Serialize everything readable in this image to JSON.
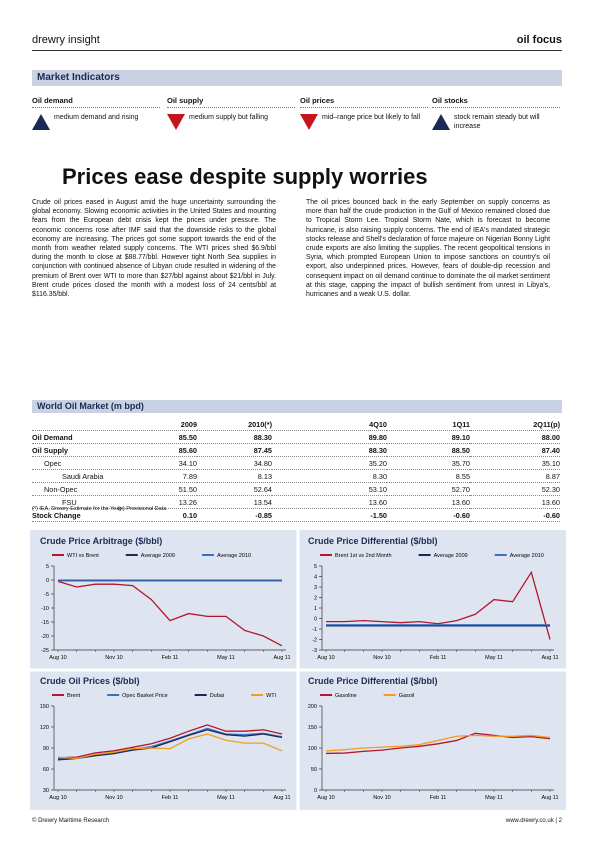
{
  "header": {
    "brand": "drewry insight",
    "section": "oil focus"
  },
  "indicators": {
    "title": "Market Indicators",
    "items": [
      {
        "label": "Oil demand",
        "text": "medium demand and rising"
      },
      {
        "label": "Oil supply",
        "text": "medium supply but falling"
      },
      {
        "label": "Oil prices",
        "text": "mid–range price but likely to fall"
      },
      {
        "label": "Oil stocks",
        "text": "stock remain steady but will increase"
      }
    ]
  },
  "article": {
    "title": "Prices ease despite supply worries",
    "columns": [
      "Crude oil prices eased in August amid the huge uncertainty surrounding the global economy. Slowing economic activities in the United States and mounting fears from the European debt crisis kept the prices under pressure. The economic concerns rose after IMF said that the downside risks to the global economy are increasing. The prices got some support towards the end of the month from weather related supply concerns. The WTI prices shed $6.9/bbl during the month to close at $88.77/bbl. However tight North Sea supplies in conjunction with continued absence of Libyan crude resulted in widening of the premium of Brent over WTI to more than $27/bbl against about $21/bbl in July.  Brent crude prices closed the month with a modest loss of 24 cents/bbl at $116.35/bbl.",
      "The oil prices bounced back in the early September on supply concerns as more than half the crude production in the Gulf of Mexico remained closed due to Tropical Storm Lee. Tropical Storm Nate, which is forecast to become hurricane, is also raising supply concerns. The end of IEA's mandated strategic stocks release and Shell's declaration of force majeure on Nigerian Bonny Light crude exports are also limiting the supplies. The recent geopolitical tensions in Syria, which prompted European Union to impose sanctions on country's oil export, also underpinned prices. However, fears of double-dip recession and consequent impact on oil demand continue to dominate the oil market sentiment at this stage, capping the impact of bullish sentiment from unrest in Libya's, hurricanes and a weak U.S. dollar."
    ]
  },
  "table": {
    "title": "World Oil Market (m bpd)",
    "columns": [
      "2009",
      "2010(*)",
      "4Q10",
      "1Q11",
      "2Q11(p)"
    ],
    "rows": [
      {
        "label": "Oil Demand",
        "values": [
          "85.50",
          "88.30",
          "89.80",
          "89.10",
          "88.00"
        ]
      },
      {
        "label": "Oil Supply",
        "values": [
          "85.60",
          "87.45",
          "88.30",
          "88.50",
          "87.40"
        ]
      },
      {
        "label": "Opec",
        "values": [
          "34.10",
          "34.80",
          "35.20",
          "35.70",
          "35.10"
        ]
      },
      {
        "label": "Saudi Arabia",
        "values": [
          "7.89",
          "8.13",
          "8.30",
          "8.55",
          "8.87"
        ]
      },
      {
        "label": "Non-Opec",
        "values": [
          "51.50",
          "52.64",
          "53.10",
          "52.70",
          "52.30"
        ]
      },
      {
        "label": "FSU",
        "values": [
          "13.26",
          "13.54",
          "13.60",
          "13.60",
          "13.60"
        ]
      },
      {
        "label": "Stock Change",
        "values": [
          "0.10",
          "-0.85",
          "-1.50",
          "-0.60",
          "-0.60"
        ]
      }
    ],
    "notes": [
      "(*) IEA, Drewry Estimate for the Year",
      "(p) Provisional Data"
    ]
  },
  "chart_data": [
    {
      "type": "line",
      "title": "Crude Price Arbitrage ($/bbl)",
      "categories": [
        "Aug 10",
        null,
        null,
        "Nov 10",
        null,
        null,
        "Feb 11",
        null,
        null,
        "May 11",
        null,
        null,
        "Aug 11"
      ],
      "ylim": [
        -25,
        5
      ],
      "yticks": [
        5,
        0,
        -5,
        -10,
        -15,
        -20,
        -25
      ],
      "series": [
        {
          "name": "WTI vs Brent",
          "color": "#b2182b",
          "values": [
            -0.5,
            -2.5,
            -1.5,
            -1.5,
            -2,
            -7,
            -14.5,
            -12,
            -13,
            -13,
            -18,
            -20,
            -23.5
          ]
        },
        {
          "name": "Average 2009",
          "color": "#1a2a55",
          "values": [
            -0.1,
            -0.1,
            -0.1,
            -0.1,
            -0.1,
            -0.1,
            -0.1,
            -0.1,
            -0.1,
            -0.1,
            -0.1,
            -0.1,
            -0.1
          ]
        },
        {
          "name": "Average 2010",
          "color": "#3a6fc4",
          "values": [
            -0.3,
            -0.3,
            -0.3,
            -0.3,
            -0.3,
            -0.3,
            -0.3,
            -0.3,
            -0.3,
            -0.3,
            -0.3,
            -0.3,
            -0.3
          ]
        }
      ]
    },
    {
      "type": "line",
      "title": "Crude Price Differential ($/bbl)",
      "categories": [
        "Aug 10",
        null,
        null,
        "Nov 10",
        null,
        null,
        "Feb 11",
        null,
        null,
        "May 11",
        null,
        null,
        "Aug 11"
      ],
      "ylim": [
        -3,
        5
      ],
      "yticks": [
        5,
        4,
        3,
        2,
        1,
        0,
        -1,
        -2,
        -3
      ],
      "series": [
        {
          "name": "Brent 1st vs 2nd Month",
          "color": "#b2182b",
          "values": [
            -0.3,
            -0.3,
            -0.2,
            -0.3,
            -0.4,
            -0.3,
            -0.5,
            -0.2,
            0.4,
            1.8,
            1.6,
            4.4,
            -2
          ]
        },
        {
          "name": "Average 2009",
          "color": "#1a2a55",
          "values": [
            -0.7,
            -0.7,
            -0.7,
            -0.7,
            -0.7,
            -0.7,
            -0.7,
            -0.7,
            -0.7,
            -0.7,
            -0.7,
            -0.7,
            -0.7
          ]
        },
        {
          "name": "Average 2010",
          "color": "#3a6fc4",
          "values": [
            -0.6,
            -0.6,
            -0.6,
            -0.6,
            -0.6,
            -0.6,
            -0.6,
            -0.6,
            -0.6,
            -0.6,
            -0.6,
            -0.6,
            -0.6
          ]
        }
      ]
    },
    {
      "type": "line",
      "title": "Crude Oil Prices ($/bbl)",
      "categories": [
        "Aug 10",
        null,
        null,
        "Nov 10",
        null,
        null,
        "Feb 11",
        null,
        null,
        "May 11",
        null,
        null,
        "Aug 11"
      ],
      "ylim": [
        30,
        150
      ],
      "yticks": [
        150,
        120,
        90,
        60,
        30
      ],
      "series": [
        {
          "name": "Brent",
          "color": "#b2182b",
          "values": [
            76,
            77,
            83,
            86,
            91,
            96,
            104,
            114,
            123,
            114,
            114,
            116,
            110
          ]
        },
        {
          "name": "Opec Basket Price",
          "color": "#3a6fc4",
          "values": [
            74,
            76,
            80,
            83,
            88,
            92,
            100,
            109,
            118,
            110,
            109,
            111,
            106
          ]
        },
        {
          "name": "Dubai",
          "color": "#1a2a55",
          "values": [
            73,
            75,
            79,
            82,
            87,
            90,
            99,
            108,
            116,
            109,
            107,
            110,
            105
          ]
        },
        {
          "name": "WTI",
          "color": "#f39c1f",
          "values": [
            77,
            75,
            81,
            84,
            89,
            90,
            89,
            103,
            110,
            101,
            97,
            97,
            86
          ]
        }
      ]
    },
    {
      "type": "line",
      "title": "Crude Price Differential ($/bbl)",
      "categories": [
        "Aug 10",
        null,
        null,
        "Nov 10",
        null,
        null,
        "Feb 11",
        null,
        null,
        "May 11",
        null,
        null,
        "Aug 11"
      ],
      "ylim": [
        0,
        200
      ],
      "yticks": [
        200,
        150,
        100,
        50,
        0
      ],
      "series": [
        {
          "name": "Gasoline",
          "color": "#b2182b",
          "values": [
            87,
            88,
            92,
            95,
            100,
            104,
            110,
            118,
            135,
            130,
            125,
            127,
            122
          ]
        },
        {
          "name": "Gasoil",
          "color": "#f39c1f",
          "values": [
            93,
            96,
            100,
            102,
            104,
            108,
            118,
            128,
            130,
            128,
            128,
            130,
            125
          ]
        }
      ]
    }
  ],
  "footer": {
    "left": "© Drewry Maritime Research",
    "right": "www.drewry.co.uk | 2"
  }
}
